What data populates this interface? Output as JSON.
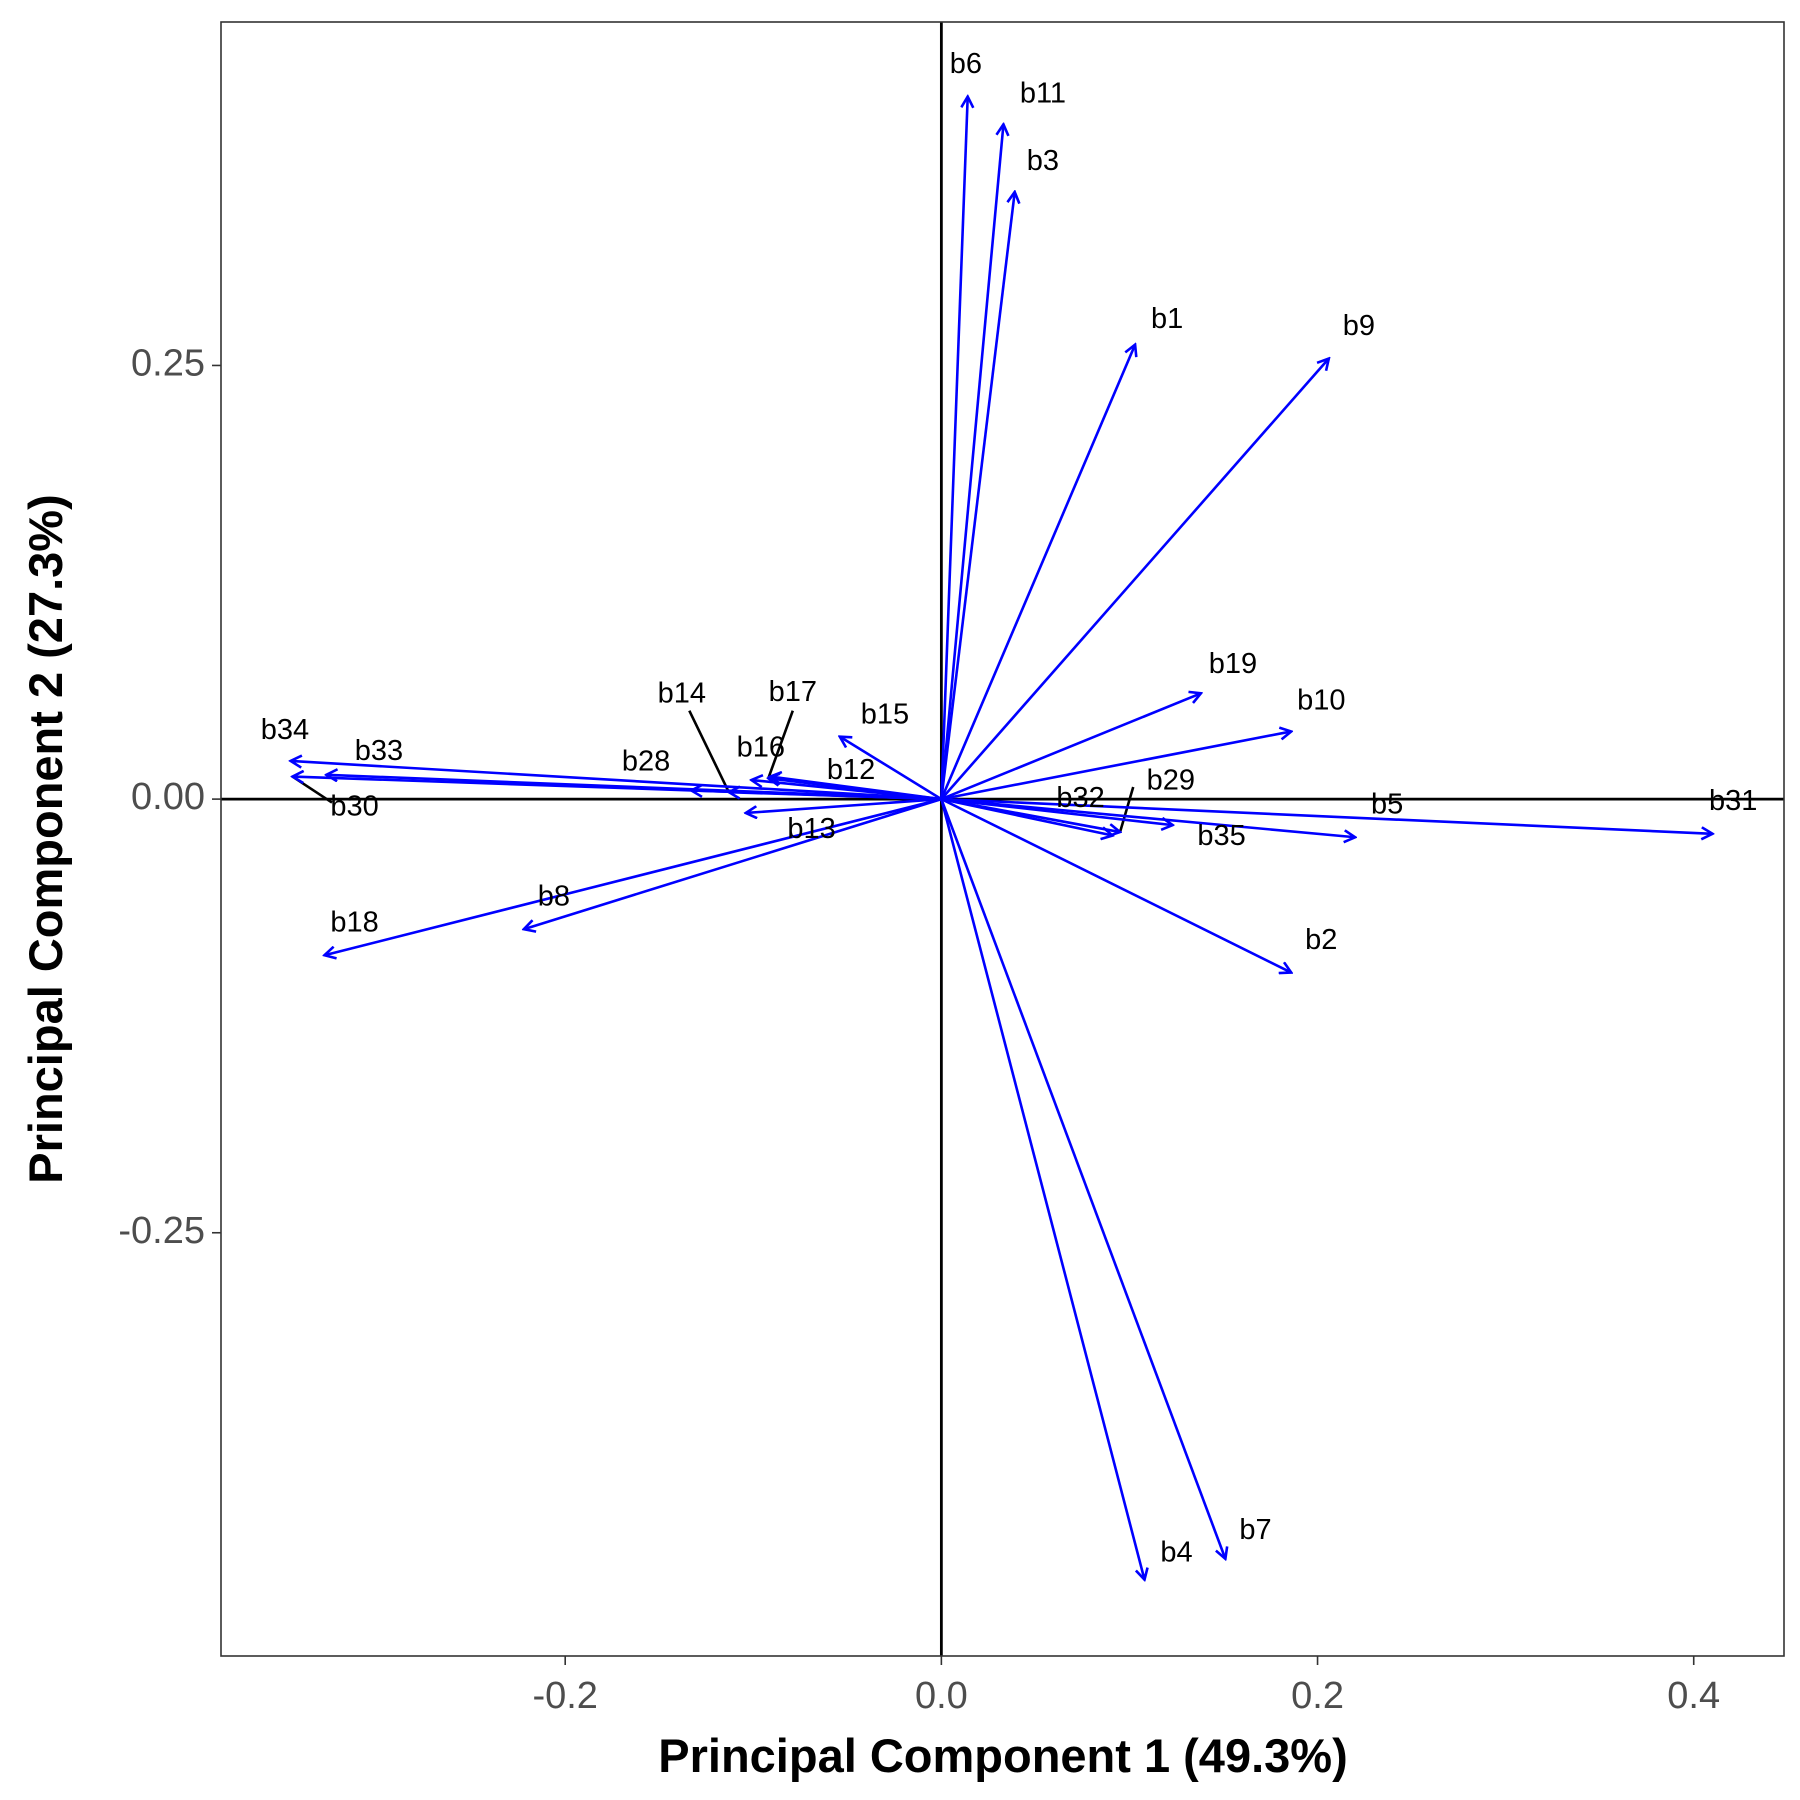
{
  "chart_data": {
    "type": "biplot",
    "title": "",
    "xlabel": "Principal Component 1 (49.3%)",
    "ylabel": "Principal Component 2 (27.3%)",
    "xlim": [
      -0.383,
      0.448
    ],
    "ylim": [
      -0.494,
      0.448
    ],
    "xticks": [
      -0.2,
      0.0,
      0.2,
      0.4
    ],
    "xtick_labels": [
      "-0.2",
      "0.0",
      "0.2",
      "0.4"
    ],
    "yticks": [
      -0.25,
      0.0,
      0.25
    ],
    "ytick_labels": [
      "-0.25",
      "0.00",
      "0.25"
    ],
    "reference_lines": {
      "x": 0,
      "y": 0
    },
    "grid": false,
    "colors": {
      "arrow": "#0000ff",
      "text": "#000000",
      "frame": "#000000",
      "tick_label": "#4d4d4d"
    },
    "arrows": [
      {
        "label": "b1",
        "x": 0.103,
        "y": 0.262
      },
      {
        "label": "b2",
        "x": 0.186,
        "y": -0.1
      },
      {
        "label": "b3",
        "x": 0.039,
        "y": 0.35
      },
      {
        "label": "b4",
        "x": 0.108,
        "y": -0.45
      },
      {
        "label": "b5",
        "x": 0.22,
        "y": -0.022
      },
      {
        "label": "b6",
        "x": 0.014,
        "y": 0.405
      },
      {
        "label": "b7",
        "x": 0.151,
        "y": -0.438
      },
      {
        "label": "b8",
        "x": -0.222,
        "y": -0.075
      },
      {
        "label": "b9",
        "x": 0.206,
        "y": 0.254
      },
      {
        "label": "b10",
        "x": 0.186,
        "y": 0.039
      },
      {
        "label": "b11",
        "x": 0.033,
        "y": 0.389
      },
      {
        "label": "b12",
        "x": -0.091,
        "y": 0.013
      },
      {
        "label": "b13",
        "x": -0.104,
        "y": -0.008
      },
      {
        "label": "b14",
        "x": -0.113,
        "y": 0.004
      },
      {
        "label": "b15",
        "x": -0.054,
        "y": 0.036
      },
      {
        "label": "b16",
        "x": -0.101,
        "y": 0.011
      },
      {
        "label": "b17",
        "x": -0.092,
        "y": 0.012
      },
      {
        "label": "b18",
        "x": -0.328,
        "y": -0.09
      },
      {
        "label": "b19",
        "x": 0.138,
        "y": 0.061
      },
      {
        "label": "b28",
        "x": -0.133,
        "y": 0.005
      },
      {
        "label": "b29",
        "x": 0.095,
        "y": -0.019
      },
      {
        "label": "b30",
        "x": -0.345,
        "y": 0.013
      },
      {
        "label": "b31",
        "x": 0.41,
        "y": -0.02
      },
      {
        "label": "b32",
        "x": 0.091,
        "y": -0.021
      },
      {
        "label": "b33",
        "x": -0.327,
        "y": 0.014
      },
      {
        "label": "b34",
        "x": -0.346,
        "y": 0.022
      },
      {
        "label": "b35",
        "x": 0.123,
        "y": -0.015
      }
    ],
    "labels": [
      {
        "text": "b1",
        "x": 0.12,
        "y": 0.276
      },
      {
        "text": "b2",
        "x": 0.202,
        "y": -0.082
      },
      {
        "text": "b3",
        "x": 0.054,
        "y": 0.367
      },
      {
        "text": "b4",
        "x": 0.125,
        "y": -0.435
      },
      {
        "text": "b5",
        "x": 0.237,
        "y": -0.004
      },
      {
        "text": "b6",
        "x": 0.013,
        "y": 0.423
      },
      {
        "text": "b7",
        "x": 0.167,
        "y": -0.422
      },
      {
        "text": "b8",
        "x": -0.206,
        "y": -0.057
      },
      {
        "text": "b9",
        "x": 0.222,
        "y": 0.272
      },
      {
        "text": "b10",
        "x": 0.202,
        "y": 0.056
      },
      {
        "text": "b11",
        "x": 0.054,
        "y": 0.406
      },
      {
        "text": "b12",
        "x": -0.048,
        "y": 0.016
      },
      {
        "text": "b13",
        "x": -0.069,
        "y": -0.018
      },
      {
        "text": "b14",
        "x": -0.138,
        "y": 0.06
      },
      {
        "text": "b15",
        "x": -0.03,
        "y": 0.048
      },
      {
        "text": "b16",
        "x": -0.096,
        "y": 0.029
      },
      {
        "text": "b17",
        "x": -0.079,
        "y": 0.061
      },
      {
        "text": "b18",
        "x": -0.312,
        "y": -0.072
      },
      {
        "text": "b19",
        "x": 0.155,
        "y": 0.077
      },
      {
        "text": "b28",
        "x": -0.157,
        "y": 0.021
      },
      {
        "text": "b29",
        "x": 0.122,
        "y": 0.01
      },
      {
        "text": "b30",
        "x": -0.312,
        "y": -0.005
      },
      {
        "text": "b31",
        "x": 0.421,
        "y": -0.002
      },
      {
        "text": "b32",
        "x": 0.074,
        "y": 0.0
      },
      {
        "text": "b33",
        "x": -0.299,
        "y": 0.027
      },
      {
        "text": "b34",
        "x": -0.349,
        "y": 0.039
      },
      {
        "text": "b35",
        "x": 0.149,
        "y": -0.022
      }
    ],
    "leader_lines": [
      {
        "label": "b14",
        "x1": -0.113,
        "y1": 0.004,
        "x2": -0.134,
        "y2": 0.051
      },
      {
        "label": "b17",
        "x1": -0.092,
        "y1": 0.012,
        "x2": -0.079,
        "y2": 0.051
      },
      {
        "label": "b29",
        "x1": 0.095,
        "y1": -0.019,
        "x2": 0.102,
        "y2": 0.007
      },
      {
        "label": "b30",
        "x1": -0.345,
        "y1": 0.013,
        "x2": -0.324,
        "y2": -0.002
      }
    ]
  }
}
